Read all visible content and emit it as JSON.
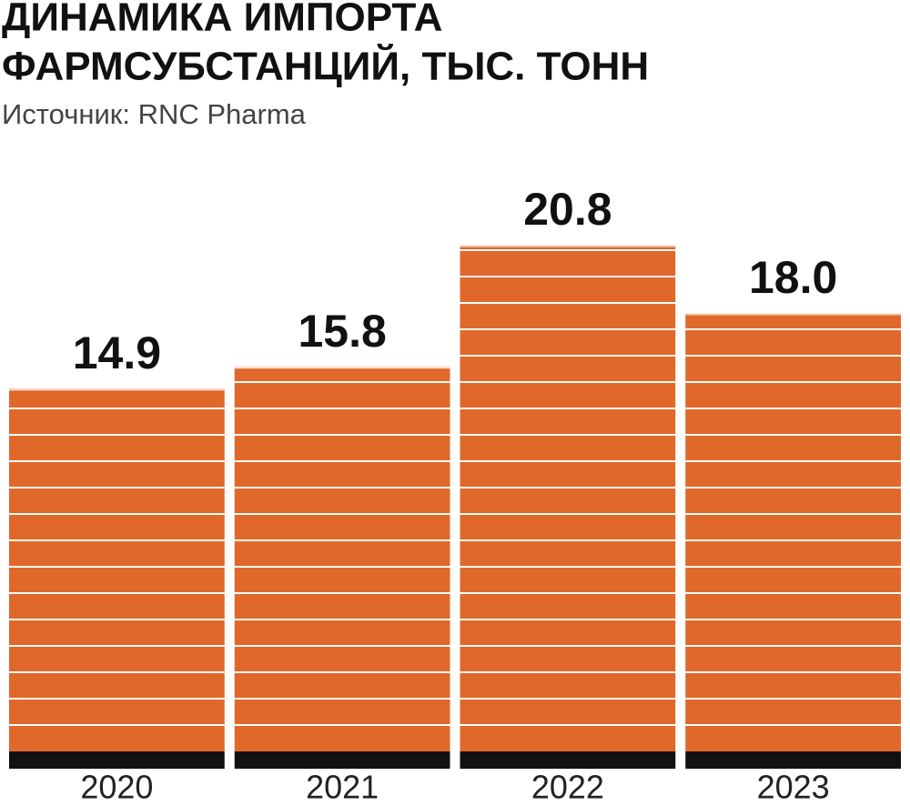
{
  "chart_data": {
    "type": "bar",
    "title": [
      "ДИНАМИКА ИМПОРТА",
      "ФАРМСУБСТАНЦИЙ, ТЫС. ТОНН"
    ],
    "subtitle": "Источник: RNC Pharma",
    "categories": [
      "2020",
      "2021",
      "2022",
      "2023"
    ],
    "values": [
      14.9,
      15.8,
      20.8,
      18
    ],
    "value_labels": [
      "14.9",
      "15.8",
      "20.8",
      "18.0"
    ],
    "color": "#e0682a"
  }
}
